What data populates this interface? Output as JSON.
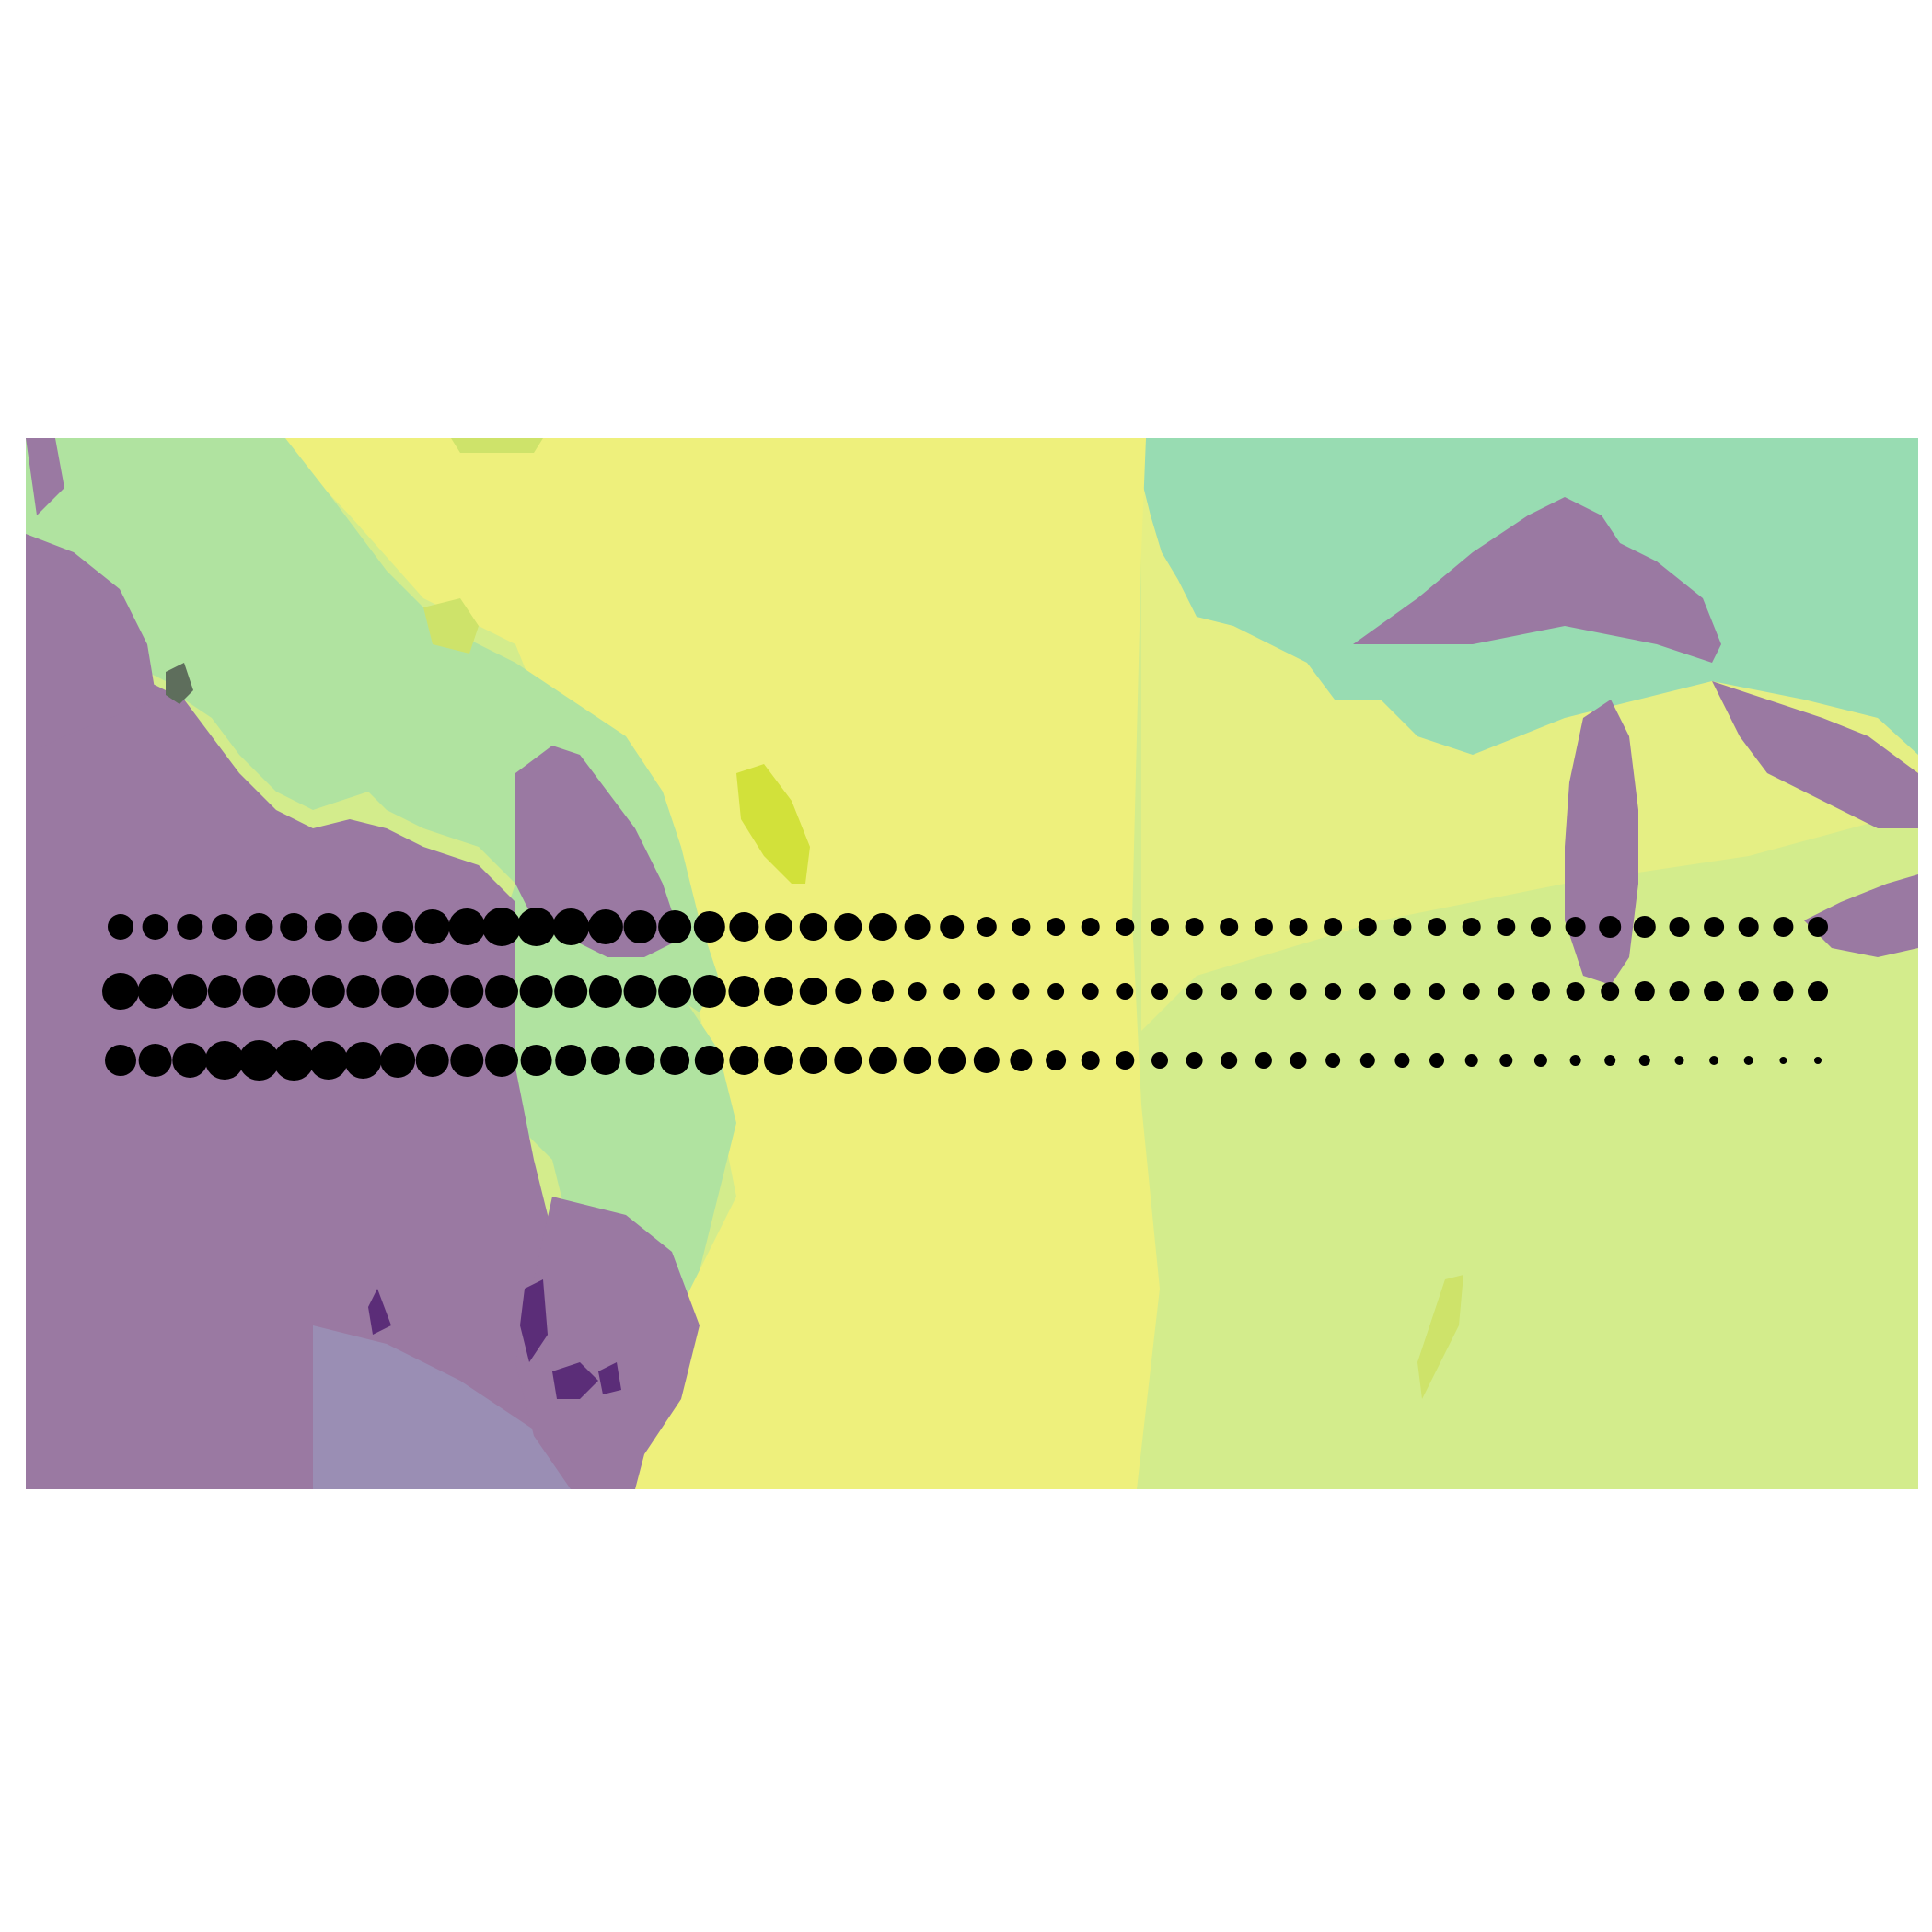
{
  "map": {
    "palette": {
      "purple": "#9a79a2",
      "purple_blue": "#9a8eb4",
      "dark_purple": "#5b2d78",
      "light_green": "#b0e3a0",
      "teal_green": "#98dcb2",
      "yellow": "#eef07c",
      "yellow_light": "#e5ef84",
      "yellow_green": "#d3ec8c",
      "lime": "#d2e13a",
      "lime_small": "#cee36a",
      "dark_grey": "#5e6e5c",
      "dot": "#000000"
    }
  },
  "chart_data": {
    "type": "scatter",
    "title": "",
    "xlabel": "",
    "ylabel": "",
    "legend": "none",
    "grid": false,
    "series": [
      {
        "row": 1,
        "symbol_size": [
          14,
          14,
          14,
          14,
          15,
          15,
          15,
          16,
          17,
          19,
          20,
          21,
          21,
          20,
          19,
          18,
          18,
          17,
          16,
          15,
          15,
          15,
          15,
          14,
          13,
          11,
          10,
          10,
          10,
          10,
          10,
          10,
          10,
          10,
          10,
          10,
          10,
          10,
          10,
          10,
          10,
          11,
          11,
          12,
          12,
          11,
          11,
          11,
          11,
          11
        ]
      },
      {
        "row": 2,
        "symbol_size": [
          20,
          19,
          19,
          18,
          18,
          18,
          18,
          18,
          18,
          18,
          18,
          18,
          18,
          18,
          18,
          18,
          18,
          18,
          17,
          16,
          15,
          14,
          12,
          10,
          9,
          9,
          9,
          9,
          9,
          9,
          9,
          9,
          9,
          9,
          9,
          9,
          9,
          9,
          9,
          9,
          9,
          10,
          10,
          10,
          11,
          11,
          11,
          11,
          11,
          11
        ]
      },
      {
        "row": 3,
        "symbol_size": [
          17,
          18,
          19,
          21,
          22,
          22,
          21,
          20,
          19,
          18,
          18,
          18,
          17,
          17,
          16,
          16,
          16,
          16,
          16,
          16,
          15,
          15,
          15,
          15,
          15,
          14,
          12,
          11,
          10,
          10,
          9,
          9,
          9,
          9,
          9,
          8,
          8,
          8,
          8,
          7,
          7,
          7,
          6,
          6,
          6,
          5,
          5,
          5,
          4,
          4
        ]
      }
    ]
  }
}
